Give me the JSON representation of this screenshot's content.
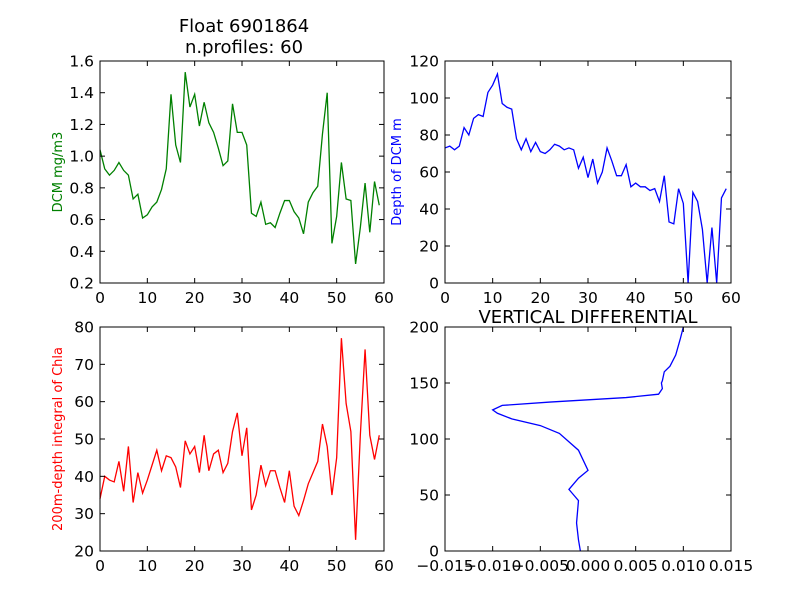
{
  "figure": {
    "title_line1": "Float 6901864",
    "title_line2": "n.profiles: 60"
  },
  "chart_data": [
    {
      "type": "line",
      "ylabel": "DCM mg/m3",
      "color": "#008000",
      "xlim": [
        0,
        60
      ],
      "ylim": [
        0.2,
        1.6
      ],
      "xticks": [
        "0",
        "10",
        "20",
        "30",
        "40",
        "50",
        "60"
      ],
      "yticks": [
        "0.2",
        "0.4",
        "0.6",
        "0.8",
        "1.0",
        "1.2",
        "1.4",
        "1.6"
      ],
      "series": [
        {
          "x": [
            0,
            1,
            2,
            3,
            4,
            5,
            6,
            7,
            8,
            9,
            10,
            11,
            12,
            13,
            14,
            15,
            16,
            17,
            18,
            19,
            20,
            21,
            22,
            23,
            24,
            25,
            26,
            27,
            28,
            29,
            30,
            31,
            32,
            33,
            34,
            35,
            36,
            37,
            38,
            39,
            40,
            41,
            42,
            43,
            44,
            45,
            46,
            47,
            48,
            49,
            50,
            51,
            52,
            53,
            54,
            55,
            56,
            57,
            58,
            59
          ],
          "values": [
            1.04,
            0.92,
            0.88,
            0.91,
            0.96,
            0.91,
            0.88,
            0.73,
            0.76,
            0.61,
            0.63,
            0.68,
            0.71,
            0.79,
            0.92,
            1.39,
            1.07,
            0.96,
            1.53,
            1.31,
            1.39,
            1.19,
            1.34,
            1.21,
            1.15,
            1.05,
            0.94,
            0.97,
            1.33,
            1.15,
            1.15,
            1.07,
            0.64,
            0.62,
            0.71,
            0.57,
            0.58,
            0.55,
            0.64,
            0.72,
            0.72,
            0.65,
            0.61,
            0.51,
            0.71,
            0.77,
            0.81,
            1.14,
            1.4,
            0.45,
            0.62,
            0.96,
            0.73,
            0.72,
            0.32,
            0.55,
            0.83,
            0.52,
            0.84,
            0.69
          ]
        }
      ]
    },
    {
      "type": "line",
      "ylabel": "Depth of DCM m",
      "color": "#0000ff",
      "xlim": [
        0,
        60
      ],
      "ylim": [
        0,
        120
      ],
      "xticks": [
        "0",
        "10",
        "20",
        "30",
        "40",
        "50",
        "60"
      ],
      "yticks": [
        "0",
        "20",
        "40",
        "60",
        "80",
        "100",
        "120"
      ],
      "series": [
        {
          "x": [
            0,
            1,
            2,
            3,
            4,
            5,
            6,
            7,
            8,
            9,
            10,
            11,
            12,
            13,
            14,
            15,
            16,
            17,
            18,
            19,
            20,
            21,
            22,
            23,
            24,
            25,
            26,
            27,
            28,
            29,
            30,
            31,
            32,
            33,
            34,
            35,
            36,
            37,
            38,
            39,
            40,
            41,
            42,
            43,
            44,
            45,
            46,
            47,
            48,
            49,
            50,
            51,
            52,
            53,
            54,
            55,
            56,
            57,
            58,
            59
          ],
          "values": [
            73,
            74,
            72,
            74,
            84,
            80,
            89,
            91,
            90,
            103,
            107,
            113,
            97,
            95,
            94,
            78,
            72,
            78,
            71,
            76,
            71,
            70,
            72,
            75,
            74,
            72,
            73,
            72,
            62,
            68,
            57,
            67,
            54,
            60,
            73,
            66,
            58,
            58,
            64,
            52,
            54,
            52,
            52,
            50,
            51,
            44,
            58,
            33,
            32,
            51,
            43,
            0,
            49,
            44,
            29,
            0,
            30,
            0,
            46,
            51
          ]
        }
      ]
    },
    {
      "type": "line",
      "ylabel": "200m-depth integral of Chla",
      "color": "#ff0000",
      "xlim": [
        0,
        60
      ],
      "ylim": [
        20,
        80
      ],
      "xticks": [
        "0",
        "10",
        "20",
        "30",
        "40",
        "50",
        "60"
      ],
      "yticks": [
        "20",
        "30",
        "40",
        "50",
        "60",
        "70",
        "80"
      ],
      "series": [
        {
          "x": [
            0,
            1,
            2,
            3,
            4,
            5,
            6,
            7,
            8,
            9,
            10,
            11,
            12,
            13,
            14,
            15,
            16,
            17,
            18,
            19,
            20,
            21,
            22,
            23,
            24,
            25,
            26,
            27,
            28,
            29,
            30,
            31,
            32,
            33,
            34,
            35,
            36,
            37,
            38,
            39,
            40,
            41,
            42,
            43,
            44,
            45,
            46,
            47,
            48,
            49,
            50,
            51,
            52,
            53,
            54,
            55,
            56,
            57,
            58,
            59
          ],
          "values": [
            34,
            40,
            39,
            38.5,
            44,
            36,
            48,
            33,
            41,
            35.5,
            39,
            43,
            47,
            41.5,
            45.5,
            45,
            42.5,
            37,
            49.5,
            46,
            48,
            41,
            51,
            41.5,
            46,
            47,
            41,
            43.5,
            52,
            57,
            45.5,
            53,
            31,
            35,
            43,
            37.5,
            41.5,
            41.5,
            37,
            33,
            41.5,
            32,
            29.5,
            33.5,
            38,
            41,
            44,
            54,
            48,
            35,
            45,
            77,
            59.5,
            52,
            23,
            51,
            74,
            51,
            44.5,
            51
          ]
        }
      ]
    },
    {
      "type": "line",
      "title": "VERTICAL DIFFERENTIAL",
      "color": "#0000ff",
      "xlim": [
        -0.015,
        0.015
      ],
      "ylim": [
        200,
        0
      ],
      "xticks": [
        "−0.015",
        "−0.010",
        "−0.005",
        "0.000",
        "0.005",
        "0.010",
        "0.015"
      ],
      "yticks": [
        "0",
        "50",
        "100",
        "150",
        "200"
      ],
      "series": [
        {
          "x": [
            0.01,
            0.0097,
            0.0092,
            0.0086,
            0.008,
            0.0078,
            0.0077,
            0.0078,
            0.0074,
            0.004,
            -0.004,
            -0.009,
            -0.01,
            -0.0095,
            -0.008,
            -0.005,
            -0.003,
            -0.001,
            0.0,
            -0.001,
            -0.002,
            -0.0015,
            -0.001,
            -0.0011,
            -0.0012,
            -0.001,
            -0.0008
          ],
          "y": [
            0,
            10,
            25,
            35,
            40,
            48,
            50,
            55,
            60,
            63,
            67,
            70,
            74,
            77,
            82,
            88,
            95,
            110,
            128,
            135,
            145,
            150,
            155,
            165,
            175,
            190,
            200
          ]
        }
      ]
    }
  ]
}
